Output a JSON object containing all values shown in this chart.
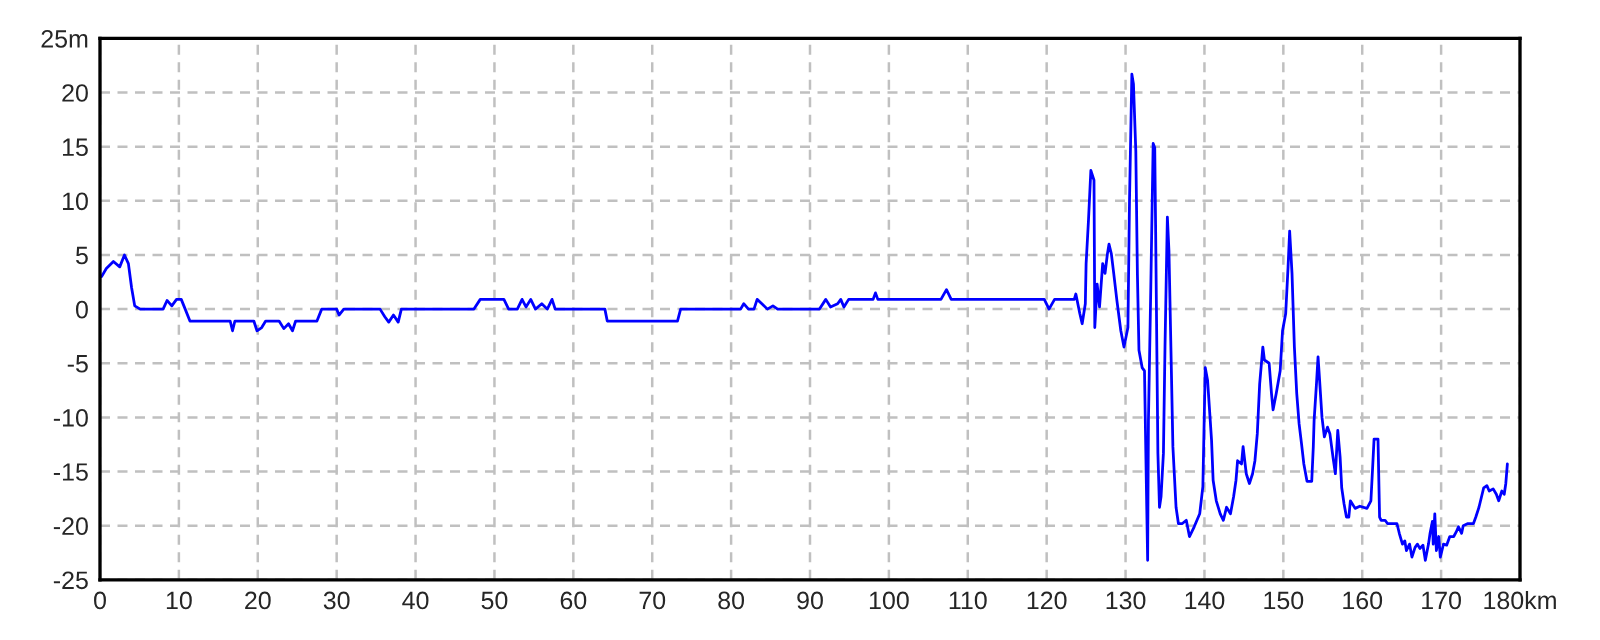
{
  "chart_data": {
    "type": "line",
    "x": [
      0.2,
      0.8,
      1.7,
      2.5,
      3.1,
      3.6,
      4.0,
      4.4,
      5.1,
      6.8,
      8.0,
      8.5,
      9.1,
      9.7,
      10.3,
      10.8,
      11.4,
      16.5,
      16.8,
      17.1,
      19.5,
      19.9,
      20.5,
      21.0,
      22.7,
      23.3,
      23.9,
      24.4,
      24.8,
      27.5,
      28.1,
      30.0,
      30.3,
      30.9,
      35.5,
      36.1,
      36.6,
      37.2,
      37.8,
      38.2,
      47.4,
      48.2,
      51.2,
      51.8,
      52.9,
      53.5,
      54.0,
      54.6,
      55.2,
      56.0,
      56.7,
      57.3,
      57.7,
      63.5,
      64.0,
      64.3,
      73.2,
      73.6,
      81.2,
      81.6,
      82.2,
      82.9,
      83.3,
      83.9,
      84.6,
      85.3,
      85.9,
      91.2,
      92.0,
      92.6,
      93.5,
      93.9,
      94.3,
      94.9,
      98.0,
      98.3,
      98.6,
      106.6,
      107.3,
      107.9,
      119.7,
      120.3,
      121.0,
      123.5,
      123.7,
      124.2,
      124.5,
      124.9,
      125.0,
      125.3,
      125.6,
      126.0,
      126.1,
      126.4,
      126.7,
      127.1,
      127.4,
      127.7,
      127.9,
      128.2,
      128.5,
      128.9,
      129.4,
      129.8,
      130.3,
      130.5,
      130.8,
      131.0,
      131.3,
      131.5,
      131.7,
      132.1,
      132.4,
      132.6,
      132.8,
      132.9,
      133.2,
      133.5,
      133.7,
      133.8,
      134.1,
      134.3,
      134.5,
      134.8,
      135.0,
      135.3,
      135.5,
      135.8,
      136.0,
      136.4,
      136.7,
      137.2,
      137.7,
      138.1,
      138.7,
      139.4,
      139.8,
      140.1,
      140.4,
      140.9,
      141.1,
      141.5,
      142.0,
      142.4,
      142.8,
      143.3,
      143.7,
      144.0,
      144.2,
      144.7,
      144.9,
      145.3,
      145.7,
      146.1,
      146.4,
      146.7,
      147.0,
      147.4,
      147.6,
      148.2,
      148.5,
      148.7,
      149.1,
      149.6,
      149.9,
      150.3,
      150.6,
      150.8,
      151.1,
      151.4,
      151.7,
      152.0,
      152.3,
      152.6,
      153.0,
      153.6,
      153.8,
      153.9,
      154.2,
      154.4,
      154.6,
      154.9,
      155.2,
      155.6,
      155.9,
      156.3,
      156.6,
      156.9,
      157.2,
      157.4,
      157.7,
      158.0,
      158.3,
      158.5,
      159.1,
      159.7,
      160.6,
      161.1,
      161.3,
      161.5,
      162.0,
      162.2,
      162.4,
      162.9,
      163.2,
      164.0,
      164.4,
      164.7,
      165.1,
      165.4,
      165.6,
      166.0,
      166.3,
      166.7,
      167.0,
      167.3,
      167.7,
      168.0,
      168.4,
      168.6,
      168.9,
      169.0,
      169.2,
      169.4,
      169.7,
      169.9,
      170.3,
      170.7,
      171.1,
      171.6,
      171.9,
      172.2,
      172.6,
      172.8,
      173.4,
      174.1,
      174.4,
      174.8,
      175.1,
      175.4,
      175.8,
      176.1,
      176.6,
      177.0,
      177.3,
      177.7,
      178.0,
      178.2,
      178.4
    ],
    "series": [
      {
        "color": "#0000ff",
        "values": [
          3.0,
          3.75,
          4.4,
          3.9,
          5.0,
          4.2,
          2.0,
          0.3,
          0,
          0,
          0,
          0.8,
          0.3,
          0.9,
          0.9,
          0,
          -1.1,
          -1.1,
          -2.0,
          -1.1,
          -1.1,
          -2.0,
          -1.7,
          -1.1,
          -1.1,
          -1.8,
          -1.35,
          -2.0,
          -1.1,
          -1.1,
          0,
          0,
          -0.55,
          0,
          0,
          -0.7,
          -1.2,
          -0.55,
          -1.2,
          0,
          0,
          0.9,
          0.9,
          0,
          0,
          0.9,
          0.2,
          0.9,
          0,
          0.5,
          0,
          0.9,
          0,
          0,
          0,
          -1.1,
          -1.1,
          0,
          0,
          0.5,
          0,
          0,
          0.9,
          0.5,
          0,
          0.3,
          0,
          0,
          0.9,
          0.2,
          0.5,
          0.9,
          0.2,
          0.9,
          0.9,
          1.5,
          0.9,
          0.9,
          1.8,
          0.9,
          0.9,
          0,
          0.9,
          0.9,
          1.4,
          -0.4,
          -1.35,
          0.5,
          4.2,
          8.2,
          12.8,
          11.9,
          -1.7,
          2.3,
          0.2,
          4.2,
          3.3,
          5.1,
          6.0,
          5.1,
          3.3,
          0.8,
          -2.0,
          -3.5,
          -1.7,
          10.0,
          21.7,
          20.8,
          14.6,
          3.3,
          -3.8,
          -5.4,
          -5.7,
          -14.6,
          -23.2,
          -10.3,
          2.0,
          15.3,
          14.9,
          8.2,
          -13.3,
          -18.3,
          -17.3,
          -13.3,
          -3.5,
          8.5,
          5.4,
          -5.4,
          -12.7,
          -18.3,
          -19.8,
          -19.8,
          -19.5,
          -21.0,
          -20.1,
          -18.9,
          -16.4,
          -5.4,
          -6.6,
          -12.1,
          -15.8,
          -17.7,
          -18.9,
          -19.5,
          -18.3,
          -18.9,
          -17.3,
          -15.8,
          -14.0,
          -14.3,
          -12.7,
          -15.2,
          -16.1,
          -15.2,
          -14.0,
          -11.5,
          -6.9,
          -3.5,
          -4.7,
          -5.0,
          -7.8,
          -9.3,
          -7.8,
          -5.7,
          -2.0,
          -0.4,
          3.9,
          7.2,
          3.3,
          -3.5,
          -7.8,
          -10.6,
          -12.4,
          -14.3,
          -15.9,
          -15.9,
          -12.7,
          -10.3,
          -6.9,
          -4.4,
          -6.6,
          -10.0,
          -11.8,
          -10.9,
          -11.5,
          -13.7,
          -15.2,
          -11.2,
          -13.7,
          -16.5,
          -18.0,
          -19.2,
          -19.2,
          -17.7,
          -18.4,
          -18.2,
          -18.4,
          -17.7,
          -14.9,
          -12.0,
          -12.0,
          -19.2,
          -19.5,
          -19.5,
          -19.8,
          -19.8,
          -19.8,
          -20.7,
          -21.7,
          -21.4,
          -22.3,
          -21.7,
          -22.9,
          -22.0,
          -21.7,
          -22.1,
          -21.8,
          -23.2,
          -21.7,
          -20.7,
          -19.6,
          -21.7,
          -18.9,
          -22.3,
          -21.0,
          -22.9,
          -21.7,
          -21.8,
          -21.0,
          -21.0,
          -20.6,
          -20.1,
          -20.7,
          -20.0,
          -19.8,
          -19.8,
          -19.2,
          -18.3,
          -17.4,
          -16.5,
          -16.3,
          -16.8,
          -16.6,
          -17.1,
          -17.7,
          -16.8,
          -17.1,
          -16.1,
          -14.3
        ]
      }
    ],
    "xlim": [
      0,
      180
    ],
    "xticks": [
      0,
      10,
      20,
      30,
      40,
      50,
      60,
      70,
      80,
      90,
      100,
      110,
      120,
      130,
      140,
      150,
      160,
      170,
      {
        "value": 180,
        "label": "180km"
      }
    ],
    "ylim": [
      -25,
      25
    ],
    "yticks": [
      -25,
      -20,
      -15,
      -10,
      -5,
      0,
      5,
      10,
      15,
      20,
      {
        "value": 25,
        "label": "25m"
      }
    ],
    "grid": true,
    "line_style": "solid",
    "marker": "none"
  }
}
